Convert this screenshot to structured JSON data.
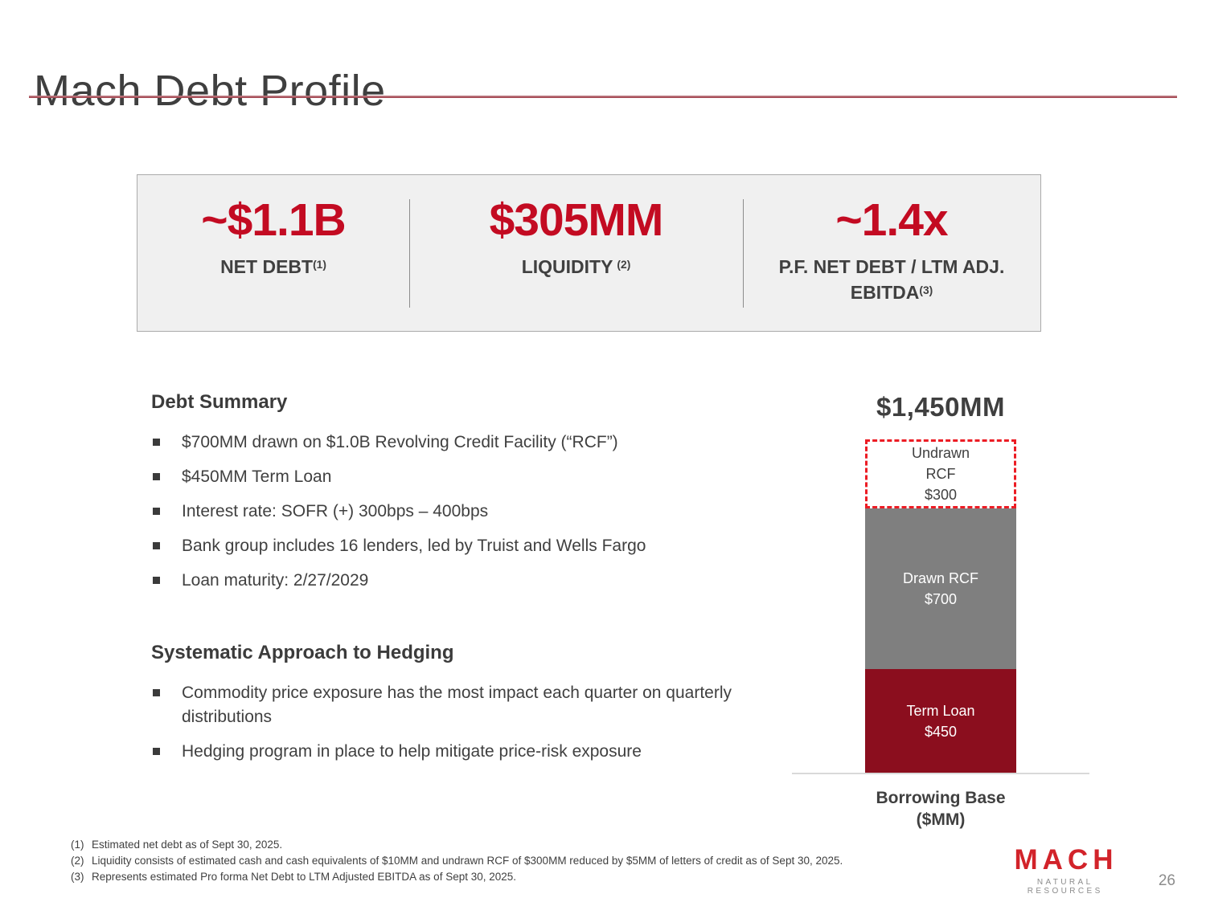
{
  "slide": {
    "title": "Mach Debt Profile",
    "page_number": "26"
  },
  "stats": {
    "net_debt": {
      "value": "~$1.1B",
      "label": "NET DEBT",
      "sup": "(1)"
    },
    "liquidity": {
      "value": "$305MM",
      "label": "LIQUIDITY",
      "sup": "(2)"
    },
    "leverage": {
      "value": "~1.4x",
      "label_line1": "P.F. NET DEBT / LTM ADJ.",
      "label_line2": "EBITDA",
      "sup": "(3)"
    }
  },
  "debt_summary": {
    "heading": "Debt Summary",
    "bullets": [
      "$700MM drawn on $1.0B Revolving Credit Facility (“RCF”)",
      "$450MM Term Loan",
      "Interest rate: SOFR (+) 300bps – 400bps",
      "Bank group includes 16 lenders, led by Truist and Wells Fargo",
      "Loan maturity: 2/27/2029"
    ]
  },
  "hedging": {
    "heading": "Systematic Approach to Hedging",
    "bullets": [
      "Commodity price exposure has the most impact each quarter on quarterly distributions",
      "Hedging program in place to help mitigate price-risk exposure"
    ]
  },
  "chart_data": {
    "type": "bar",
    "subtype": "stacked",
    "title": "$1,450MM",
    "total": 1450,
    "unit": "$MM",
    "xlabel_line1": "Borrowing Base",
    "xlabel_line2": "($MM)",
    "legend_position": "none",
    "grid": false,
    "segments": [
      {
        "name": "Undrawn RCF",
        "value": 300,
        "lines": [
          "Undrawn",
          "RCF",
          "$300"
        ],
        "fill": "#ffffff",
        "border": "3px dashed #ec1c24",
        "text_color": "#404040"
      },
      {
        "name": "Drawn RCF",
        "value": 700,
        "lines": [
          "Drawn RCF",
          "$700"
        ],
        "fill": "#7f7f7f",
        "border": "none",
        "text_color": "#ffffff"
      },
      {
        "name": "Term Loan",
        "value": 450,
        "lines": [
          "Term Loan",
          "$450"
        ],
        "fill": "#8b0e1e",
        "border": "none",
        "text_color": "#ffffff"
      }
    ]
  },
  "footnotes": [
    {
      "marker": "(1)",
      "text": "Estimated net debt as of Sept 30, 2025."
    },
    {
      "marker": "(2)",
      "text": "Liquidity consists of estimated cash and cash equivalents of $10MM and undrawn RCF of $300MM reduced by $5MM of letters of credit as of Sept 30, 2025."
    },
    {
      "marker": "(3)",
      "text": "Represents estimated Pro forma Net Debt to LTM Adjusted EBITDA as of Sept 30, 2025."
    }
  ],
  "logo": {
    "name": "MACH",
    "tagline": "NATURAL RESOURCES"
  },
  "colors": {
    "stat_red": "#c30b22",
    "dashed_red": "#ec1c24",
    "term_loan_maroon": "#8b0e1e",
    "bar_gray": "#7f7f7f",
    "underline_maroon": "#9e3a46",
    "logo_red": "#d2232a",
    "text_dark_gray": "#404040",
    "box_background": "#f0f0f0"
  }
}
